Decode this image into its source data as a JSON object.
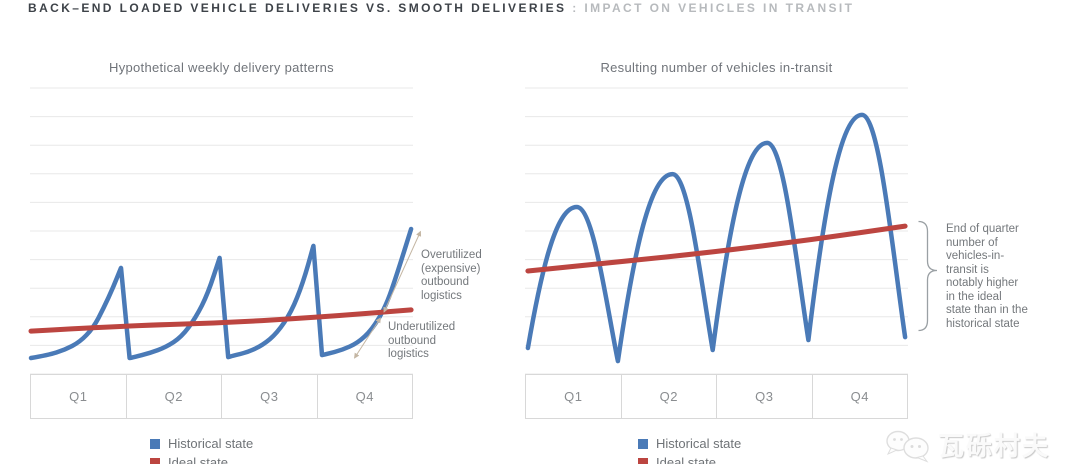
{
  "header": {
    "title_primary": "BACK–END LOADED VEHICLE DELIVERIES VS. SMOOTH DELIVERIES",
    "title_secondary": " : IMPACT ON VEHICLES IN TRANSIT"
  },
  "legend": {
    "historical_label": "Historical state",
    "ideal_label": "Ideal state"
  },
  "colors": {
    "historical": "#4a7ab7",
    "ideal": "#bc4540",
    "gridline": "#e8e8e8",
    "table_border": "#d8d8d8",
    "callout_arrow": "#c4b6a3",
    "bracket": "#9aa0a4"
  },
  "watermark": {
    "text": "瓦砾村夫"
  },
  "chart_data": [
    {
      "type": "line",
      "title": "Hypothetical weekly delivery patterns",
      "x_categories": [
        "Q1",
        "Q2",
        "Q3",
        "Q4"
      ],
      "xlabel": "",
      "ylabel": "",
      "x_unit": "quarters",
      "xlim": [
        0,
        4
      ],
      "ylim": [
        0,
        100
      ],
      "grid": "horizontal",
      "gridlines": 11,
      "legend_position": "bottom",
      "legend_entries": [
        "Historical state",
        "Ideal state"
      ],
      "series": [
        {
          "name": "Historical state",
          "color": "#4a7ab7",
          "style": "sawtooth",
          "points": [
            [
              0.01,
              5.6
            ],
            [
              0.19,
              6.6
            ],
            [
              0.36,
              8.4
            ],
            [
              0.52,
              11.2
            ],
            [
              0.66,
              16.1
            ],
            [
              0.77,
              23.1
            ],
            [
              0.87,
              30.4
            ],
            [
              0.95,
              37.1
            ],
            [
              1.04,
              5.6
            ],
            [
              1.09,
              5.9
            ],
            [
              1.25,
              7.3
            ],
            [
              1.42,
              9.4
            ],
            [
              1.58,
              12.9
            ],
            [
              1.73,
              19.6
            ],
            [
              1.86,
              28.3
            ],
            [
              1.98,
              40.6
            ],
            [
              2.07,
              5.9
            ],
            [
              2.11,
              6.3
            ],
            [
              2.28,
              7.7
            ],
            [
              2.43,
              10.1
            ],
            [
              2.58,
              14.3
            ],
            [
              2.73,
              21.7
            ],
            [
              2.85,
              31.8
            ],
            [
              2.96,
              44.8
            ],
            [
              3.05,
              6.6
            ],
            [
              3.1,
              7.0
            ],
            [
              3.26,
              8.4
            ],
            [
              3.42,
              10.8
            ],
            [
              3.57,
              15.4
            ],
            [
              3.72,
              23.8
            ],
            [
              3.84,
              35.7
            ],
            [
              3.98,
              50.7
            ]
          ]
        },
        {
          "name": "Ideal state",
          "color": "#bc4540",
          "style": "smooth",
          "points": [
            [
              0.01,
              15.0
            ],
            [
              0.94,
              16.8
            ],
            [
              1.98,
              17.8
            ],
            [
              3.03,
              19.9
            ],
            [
              3.98,
              22.4
            ]
          ]
        }
      ],
      "annotations": [
        {
          "id": "overutilized",
          "text": "Overutilized\n(expensive)\noutbound\nlogistics"
        },
        {
          "id": "underutilized",
          "text": "Underutilized\noutbound\nlogistics"
        }
      ]
    },
    {
      "type": "line",
      "title": "Resulting number of vehicles in-transit",
      "x_categories": [
        "Q1",
        "Q2",
        "Q3",
        "Q4"
      ],
      "xlabel": "",
      "ylabel": "",
      "x_unit": "quarters",
      "xlim": [
        0,
        4
      ],
      "ylim": [
        0,
        100
      ],
      "grid": "horizontal",
      "gridlines": 11,
      "legend_position": "bottom",
      "legend_entries": [
        "Historical state",
        "Ideal state"
      ],
      "series": [
        {
          "name": "Historical state",
          "color": "#4a7ab7",
          "style": "arches",
          "points": [
            [
              0.03,
              9.1
            ],
            [
              0.54,
              58.4
            ],
            [
              0.97,
              4.5
            ],
            [
              1.54,
              69.9
            ],
            [
              1.96,
              8.4
            ],
            [
              2.53,
              80.8
            ],
            [
              2.96,
              11.9
            ],
            [
              3.52,
              90.6
            ],
            [
              3.97,
              12.9
            ]
          ]
        },
        {
          "name": "Ideal state",
          "color": "#bc4540",
          "style": "smooth",
          "points": [
            [
              0.03,
              36.0
            ],
            [
              0.99,
              39.2
            ],
            [
              1.98,
              42.7
            ],
            [
              2.98,
              46.9
            ],
            [
              3.97,
              51.7
            ]
          ]
        }
      ],
      "annotations": [
        {
          "id": "end-of-quarter",
          "text": "End of quarter\nnumber of\nvehicles-in-\ntransit is\nnotably higher\nin the ideal\nstate than in the\nhistorical state"
        }
      ]
    }
  ]
}
